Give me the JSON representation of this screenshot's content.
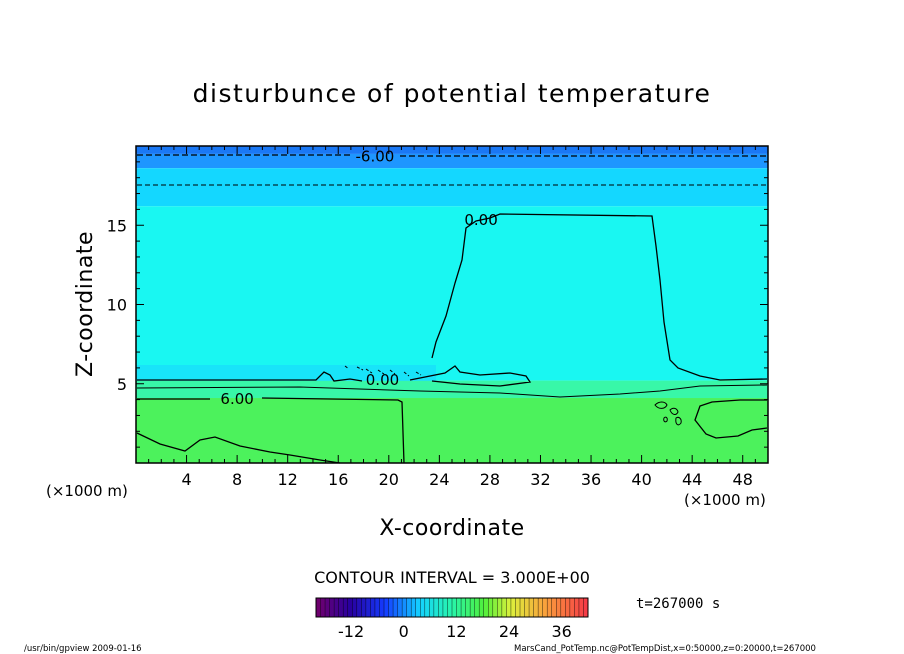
{
  "chart_data": {
    "type": "heatmap",
    "title": "disturbunce of potential temperature",
    "xlabel": "X-coordinate",
    "ylabel": "Z-coordinate",
    "x_unit_left": "(×1000 m)",
    "x_unit_right": "(×1000 m)",
    "xlim": [
      0,
      50
    ],
    "ylim": [
      0,
      20
    ],
    "x_ticks": [
      4,
      8,
      12,
      16,
      20,
      24,
      28,
      32,
      36,
      40,
      44,
      48
    ],
    "y_ticks": [
      5,
      10,
      15
    ],
    "contour_interval_text": "CONTOUR INTERVAL = 3.000E+00",
    "time_text": "t=267000 s",
    "contour_labels": [
      {
        "text": "-6.00",
        "x": 18.9,
        "z": 19.4
      },
      {
        "text": "0.00",
        "x": 27.3,
        "z": 15.4
      },
      {
        "text": "0.00",
        "x": 19.5,
        "z": 5.3
      },
      {
        "text": "6.00",
        "x": 8.0,
        "z": 4.1
      }
    ],
    "layers": [
      {
        "z_from": 19.5,
        "z_to": 20.0,
        "color": "#1a78f5"
      },
      {
        "z_from": 18.6,
        "z_to": 19.5,
        "color": "#1e96ff"
      },
      {
        "z_from": 16.2,
        "z_to": 18.6,
        "color": "#14d7ff"
      },
      {
        "z_from": 5.2,
        "z_to": 16.2,
        "color": "#19f7f2"
      },
      {
        "z_from": 4.1,
        "z_to": 5.2,
        "color": "#38f7a8"
      },
      {
        "z_from": 0.0,
        "z_to": 4.1,
        "color": "#4cf25c"
      }
    ],
    "colorbar": {
      "min": -20,
      "max": 42,
      "ticks": [
        "-12",
        "0",
        "12",
        "24",
        "36"
      ],
      "tick_values": [
        -12,
        0,
        12,
        24,
        36
      ]
    }
  },
  "footer": {
    "left": "/usr/bin/gpview   2009-01-16",
    "right": "MarsCand_PotTemp.nc@PotTempDist,x=0:50000,z=0:20000,t=267000"
  }
}
